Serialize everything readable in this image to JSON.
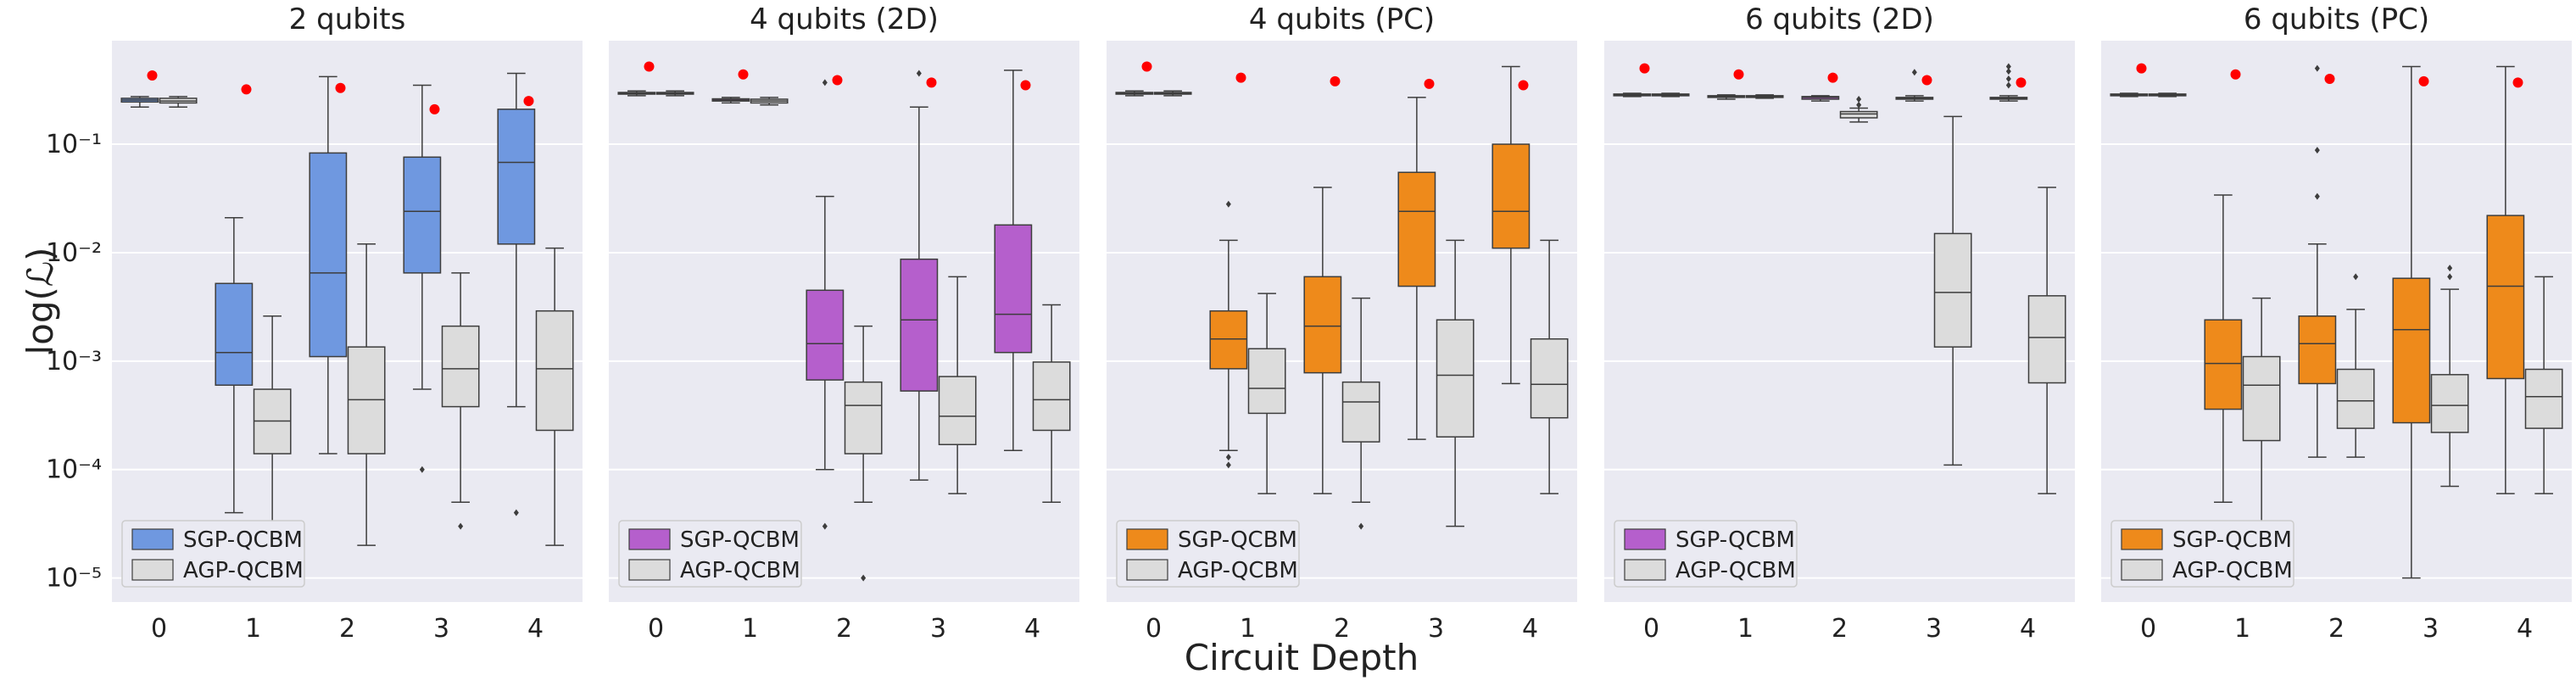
{
  "chart_data": {
    "type": "box",
    "xlabel": "Circuit Depth",
    "ylabel": "log(ℒ)",
    "yscale": "log",
    "ylim": [
      6e-06,
      0.9
    ],
    "yticks": [
      1e-05,
      0.0001,
      0.001,
      0.01,
      0.1
    ],
    "ytick_labels": [
      "10⁻⁵",
      "10⁻⁴",
      "10⁻³",
      "10⁻²",
      "10⁻¹"
    ],
    "categories": [
      "0",
      "1",
      "2",
      "3",
      "4"
    ],
    "colors": {
      "sgp_blue": "#6f98e0",
      "sgp_purple": "#b55fcc",
      "sgp_orange": "#ee8a1b",
      "agp": "#dcdcdc",
      "reference_dot": "#ff0000",
      "background": "#eaeaf2"
    },
    "panels": [
      {
        "title": "2 qubits",
        "sgp_color_key": "sgp_blue",
        "legend": [
          "SGP-QCBM",
          "AGP-QCBM"
        ],
        "reference": [
          0.43,
          0.32,
          0.33,
          0.21,
          0.25
        ],
        "series": [
          {
            "name": "SGP-QCBM",
            "boxes": [
              {
                "lo": 0.22,
                "q1": 0.245,
                "med": 0.255,
                "q3": 0.265,
                "hi": 0.275,
                "fliers": []
              },
              {
                "lo": 4e-05,
                "q1": 0.0006,
                "med": 0.0012,
                "q3": 0.0052,
                "hi": 0.021,
                "fliers": []
              },
              {
                "lo": 0.00014,
                "q1": 0.0011,
                "med": 0.0065,
                "q3": 0.083,
                "hi": 0.42,
                "fliers": []
              },
              {
                "lo": 0.00055,
                "q1": 0.0065,
                "med": 0.024,
                "q3": 0.076,
                "hi": 0.35,
                "fliers": [
                  0.0001
                ]
              },
              {
                "lo": 0.00038,
                "q1": 0.012,
                "med": 0.068,
                "q3": 0.21,
                "hi": 0.45,
                "fliers": [
                  4e-05
                ]
              }
            ]
          },
          {
            "name": "AGP-QCBM",
            "boxes": [
              {
                "lo": 0.22,
                "q1": 0.24,
                "med": 0.25,
                "q3": 0.265,
                "hi": 0.275,
                "fliers": []
              },
              {
                "lo": 3e-05,
                "q1": 0.00014,
                "med": 0.00028,
                "q3": 0.00055,
                "hi": 0.0026,
                "fliers": []
              },
              {
                "lo": 2e-05,
                "q1": 0.00014,
                "med": 0.00044,
                "q3": 0.00135,
                "hi": 0.012,
                "fliers": []
              },
              {
                "lo": 5e-05,
                "q1": 0.00038,
                "med": 0.00085,
                "q3": 0.0021,
                "hi": 0.0065,
                "fliers": [
                  3e-05
                ]
              },
              {
                "lo": 2e-05,
                "q1": 0.00023,
                "med": 0.00085,
                "q3": 0.0029,
                "hi": 0.011,
                "fliers": []
              }
            ]
          }
        ]
      },
      {
        "title": "4 qubits (2D)",
        "sgp_color_key": "sgp_purple",
        "legend": [
          "SGP-QCBM",
          "AGP-QCBM"
        ],
        "reference": [
          0.52,
          0.44,
          0.39,
          0.37,
          0.35
        ],
        "series": [
          {
            "name": "SGP-QCBM",
            "boxes": [
              {
                "lo": 0.28,
                "q1": 0.29,
                "med": 0.295,
                "q3": 0.3,
                "hi": 0.31,
                "fliers": []
              },
              {
                "lo": 0.24,
                "q1": 0.25,
                "med": 0.255,
                "q3": 0.262,
                "hi": 0.27,
                "fliers": []
              },
              {
                "lo": 0.0001,
                "q1": 0.00067,
                "med": 0.00145,
                "q3": 0.0045,
                "hi": 0.033,
                "fliers": [
                  3e-05,
                  0.37
                ]
              },
              {
                "lo": 8e-05,
                "q1": 0.00053,
                "med": 0.0024,
                "q3": 0.0087,
                "hi": 0.22,
                "fliers": [
                  0.45
                ]
              },
              {
                "lo": 0.00015,
                "q1": 0.0012,
                "med": 0.0027,
                "q3": 0.018,
                "hi": 0.48,
                "fliers": []
              }
            ]
          },
          {
            "name": "AGP-QCBM",
            "boxes": [
              {
                "lo": 0.28,
                "q1": 0.29,
                "med": 0.295,
                "q3": 0.3,
                "hi": 0.31,
                "fliers": []
              },
              {
                "lo": 0.23,
                "q1": 0.24,
                "med": 0.25,
                "q3": 0.26,
                "hi": 0.27,
                "fliers": []
              },
              {
                "lo": 5e-05,
                "q1": 0.00014,
                "med": 0.00039,
                "q3": 0.00064,
                "hi": 0.0021,
                "fliers": [
                  1e-05
                ]
              },
              {
                "lo": 6e-05,
                "q1": 0.00017,
                "med": 0.00031,
                "q3": 0.00072,
                "hi": 0.006,
                "fliers": []
              },
              {
                "lo": 5e-05,
                "q1": 0.00023,
                "med": 0.00044,
                "q3": 0.00098,
                "hi": 0.0033,
                "fliers": []
              }
            ]
          }
        ]
      },
      {
        "title": "4 qubits (PC)",
        "sgp_color_key": "sgp_orange",
        "legend": [
          "SGP-QCBM",
          "AGP-QCBM"
        ],
        "reference": [
          0.52,
          0.41,
          0.38,
          0.36,
          0.35
        ],
        "series": [
          {
            "name": "SGP-QCBM",
            "boxes": [
              {
                "lo": 0.28,
                "q1": 0.29,
                "med": 0.295,
                "q3": 0.3,
                "hi": 0.31,
                "fliers": []
              },
              {
                "lo": 0.00015,
                "q1": 0.00085,
                "med": 0.0016,
                "q3": 0.0029,
                "hi": 0.013,
                "fliers": [
                  0.00011,
                  0.00013,
                  0.028
                ]
              },
              {
                "lo": 6e-05,
                "q1": 0.00078,
                "med": 0.0021,
                "q3": 0.006,
                "hi": 0.04,
                "fliers": []
              },
              {
                "lo": 0.00019,
                "q1": 0.0049,
                "med": 0.024,
                "q3": 0.055,
                "hi": 0.27,
                "fliers": []
              },
              {
                "lo": 0.00062,
                "q1": 0.011,
                "med": 0.024,
                "q3": 0.1,
                "hi": 0.52,
                "fliers": []
              }
            ]
          },
          {
            "name": "AGP-QCBM",
            "boxes": [
              {
                "lo": 0.28,
                "q1": 0.29,
                "med": 0.295,
                "q3": 0.3,
                "hi": 0.31,
                "fliers": []
              },
              {
                "lo": 6e-05,
                "q1": 0.00033,
                "med": 0.00056,
                "q3": 0.0013,
                "hi": 0.0042,
                "fliers": []
              },
              {
                "lo": 5e-05,
                "q1": 0.00018,
                "med": 0.00042,
                "q3": 0.00064,
                "hi": 0.0038,
                "fliers": [
                  3e-05
                ]
              },
              {
                "lo": 3e-05,
                "q1": 0.0002,
                "med": 0.00074,
                "q3": 0.0024,
                "hi": 0.013,
                "fliers": []
              },
              {
                "lo": 6e-05,
                "q1": 0.0003,
                "med": 0.00061,
                "q3": 0.0016,
                "hi": 0.013,
                "fliers": []
              }
            ]
          }
        ]
      },
      {
        "title": "6 qubits (2D)",
        "sgp_color_key": "sgp_purple",
        "legend": [
          "SGP-QCBM",
          "AGP-QCBM"
        ],
        "reference": [
          0.5,
          0.44,
          0.41,
          0.39,
          0.37
        ],
        "series": [
          {
            "name": "SGP-QCBM",
            "boxes": [
              {
                "lo": 0.275,
                "q1": 0.28,
                "med": 0.285,
                "q3": 0.29,
                "hi": 0.295,
                "fliers": []
              },
              {
                "lo": 0.26,
                "q1": 0.27,
                "med": 0.275,
                "q3": 0.28,
                "hi": 0.285,
                "fliers": []
              },
              {
                "lo": 0.25,
                "q1": 0.26,
                "med": 0.27,
                "q3": 0.275,
                "hi": 0.28,
                "fliers": []
              },
              {
                "lo": 0.25,
                "q1": 0.26,
                "med": 0.265,
                "q3": 0.27,
                "hi": 0.28,
                "fliers": [
                  0.46
                ]
              },
              {
                "lo": 0.25,
                "q1": 0.26,
                "med": 0.265,
                "q3": 0.27,
                "hi": 0.28,
                "fliers": [
                  0.35,
                  0.4,
                  0.47,
                  0.52
                ]
              }
            ]
          },
          {
            "name": "AGP-QCBM",
            "boxes": [
              {
                "lo": 0.275,
                "q1": 0.28,
                "med": 0.285,
                "q3": 0.29,
                "hi": 0.295,
                "fliers": []
              },
              {
                "lo": 0.265,
                "q1": 0.27,
                "med": 0.275,
                "q3": 0.28,
                "hi": 0.285,
                "fliers": []
              },
              {
                "lo": 0.16,
                "q1": 0.175,
                "med": 0.19,
                "q3": 0.2,
                "hi": 0.215,
                "fliers": [
                  0.23,
                  0.26
                ]
              },
              {
                "lo": 0.00011,
                "q1": 0.00135,
                "med": 0.0043,
                "q3": 0.015,
                "hi": 0.18,
                "fliers": []
              },
              {
                "lo": 6e-05,
                "q1": 0.00063,
                "med": 0.00165,
                "q3": 0.004,
                "hi": 0.04,
                "fliers": []
              }
            ]
          }
        ]
      },
      {
        "title": "6 qubits (PC)",
        "sgp_color_key": "sgp_orange",
        "legend": [
          "SGP-QCBM",
          "AGP-QCBM"
        ],
        "reference": [
          0.5,
          0.44,
          0.4,
          0.38,
          0.37
        ],
        "series": [
          {
            "name": "SGP-QCBM",
            "boxes": [
              {
                "lo": 0.275,
                "q1": 0.28,
                "med": 0.285,
                "q3": 0.29,
                "hi": 0.295,
                "fliers": []
              },
              {
                "lo": 5e-05,
                "q1": 0.00036,
                "med": 0.00095,
                "q3": 0.0024,
                "hi": 0.034,
                "fliers": []
              },
              {
                "lo": 0.00013,
                "q1": 0.00062,
                "med": 0.00145,
                "q3": 0.0026,
                "hi": 0.012,
                "fliers": [
                  0.033,
                  0.088,
                  0.5
                ]
              },
              {
                "lo": 1e-05,
                "q1": 0.00027,
                "med": 0.00195,
                "q3": 0.0058,
                "hi": 0.52,
                "fliers": []
              },
              {
                "lo": 6e-05,
                "q1": 0.00069,
                "med": 0.0049,
                "q3": 0.022,
                "hi": 0.52,
                "fliers": []
              }
            ]
          },
          {
            "name": "AGP-QCBM",
            "boxes": [
              {
                "lo": 0.275,
                "q1": 0.28,
                "med": 0.285,
                "q3": 0.29,
                "hi": 0.295,
                "fliers": []
              },
              {
                "lo": 3e-05,
                "q1": 0.000185,
                "med": 0.0006,
                "q3": 0.0011,
                "hi": 0.0038,
                "fliers": []
              },
              {
                "lo": 0.00013,
                "q1": 0.00024,
                "med": 0.00043,
                "q3": 0.00084,
                "hi": 0.003,
                "fliers": [
                  0.006
                ]
              },
              {
                "lo": 7e-05,
                "q1": 0.00022,
                "med": 0.00039,
                "q3": 0.00075,
                "hi": 0.0046,
                "fliers": [
                  0.006,
                  0.0072
                ]
              },
              {
                "lo": 6e-05,
                "q1": 0.00024,
                "med": 0.00047,
                "q3": 0.00084,
                "hi": 0.006,
                "fliers": []
              }
            ]
          }
        ]
      }
    ]
  }
}
